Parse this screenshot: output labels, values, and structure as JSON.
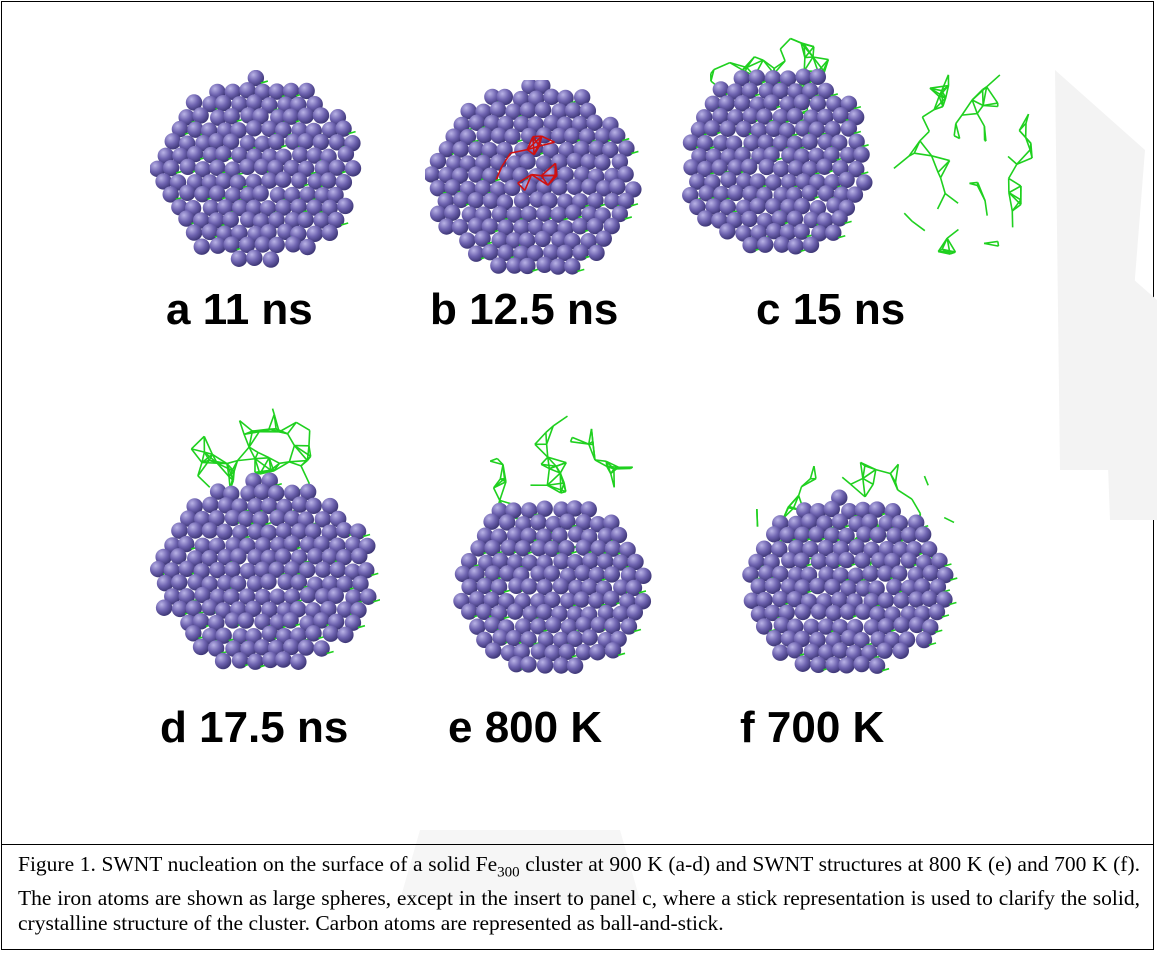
{
  "figure": {
    "panels": [
      {
        "id": "a",
        "label": "a 11 ns"
      },
      {
        "id": "b",
        "label": "b 12.5 ns"
      },
      {
        "id": "c",
        "label": "c 15 ns"
      },
      {
        "id": "d",
        "label": "d 17.5 ns"
      },
      {
        "id": "e",
        "label": "e 800 K"
      },
      {
        "id": "f",
        "label": "f 700 K"
      }
    ],
    "colors": {
      "iron_sphere": "#6e63b0",
      "iron_highlight": "#b9b3e6",
      "carbon_stick": "#1fd01f",
      "ring_highlight": "#d01010"
    }
  },
  "caption": {
    "lead": "Figure 1. SWNT nucleation on the surface of a solid Fe",
    "subscript": "300",
    "rest": " cluster at 900 K (a-d) and SWNT structures at 800 K (e) and 700 K (f). The iron atoms are shown as large spheres, except in the insert to panel c, where a stick representation is used to clarify the solid, crystalline structure of the cluster.  Carbon atoms are represented as ball-and-stick."
  }
}
